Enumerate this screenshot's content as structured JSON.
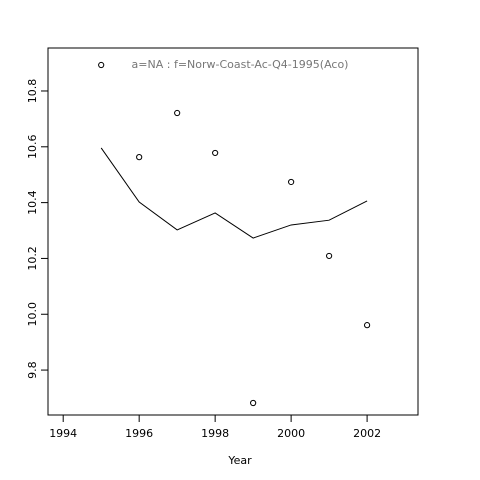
{
  "chart_data": {
    "type": "line",
    "annotation": "a=NA  :  f=Norw-Coast-Ac-Q4-1995(Aco)",
    "xlabel": "Year",
    "x": [
      1995,
      1996,
      1997,
      1998,
      1999,
      2000,
      2001,
      2002
    ],
    "series": [
      {
        "draw": "points",
        "color": "#000000",
        "values": [
          10.893,
          10.563,
          10.721,
          10.578,
          9.682,
          10.474,
          10.209,
          9.961
        ]
      },
      {
        "draw": "line",
        "color": "#000000",
        "values": [
          10.596,
          10.402,
          10.302,
          10.363,
          10.273,
          10.32,
          10.337,
          10.406
        ]
      }
    ],
    "xlim": [
      1993.6,
      2003.34
    ],
    "ylim": [
      9.639,
      10.954
    ],
    "xticks": [
      1994,
      1996,
      1998,
      2000,
      2002
    ],
    "yticks": [
      9.8,
      {
        "value": 10,
        "label": "10.0"
      },
      10.2,
      10.4,
      10.6,
      10.8
    ],
    "grid": false
  }
}
